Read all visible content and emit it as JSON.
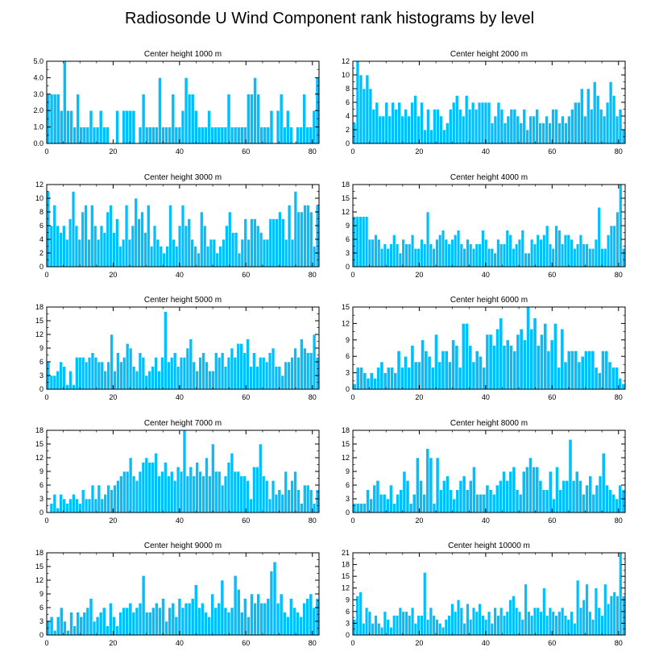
{
  "figure_title": "Radiosonde U Wind Component rank histograms by level",
  "colors": {
    "bar": "#00bfff",
    "axis": "#000000",
    "background": "#ffffff"
  },
  "chart_data": [
    {
      "type": "bar",
      "title": "Center height 1000 m",
      "xlim": [
        0,
        82
      ],
      "ylim": [
        0,
        5
      ],
      "xticks": [
        0,
        20,
        40,
        60,
        80
      ],
      "xtick_labels": [
        "0",
        "20",
        "40",
        "60",
        "80"
      ],
      "yticks": [
        0,
        1,
        2,
        3,
        4,
        5
      ],
      "ytick_labels": [
        "0.0",
        "1.0",
        "2.0",
        "3.0",
        "4.0",
        "5.0"
      ],
      "values": [
        3,
        3,
        3,
        3,
        2,
        5,
        2,
        2,
        1,
        3,
        1,
        1,
        1,
        2,
        1,
        1,
        2,
        1,
        1,
        0,
        0,
        2,
        0,
        2,
        2,
        2,
        2,
        0,
        1,
        3,
        1,
        1,
        1,
        1,
        4,
        1,
        1,
        1,
        3,
        1,
        1,
        2,
        4,
        3,
        3,
        2,
        1,
        1,
        1,
        2,
        1,
        1,
        1,
        1,
        1,
        3,
        1,
        1,
        1,
        1,
        1,
        3,
        3,
        4,
        3,
        1,
        1,
        1,
        2,
        0,
        2,
        3,
        1,
        2,
        1,
        0,
        1,
        1,
        3,
        1,
        1,
        2,
        4
      ]
    },
    {
      "type": "bar",
      "title": "Center height 2000 m",
      "xlim": [
        0,
        82
      ],
      "ylim": [
        0,
        12
      ],
      "xticks": [
        0,
        20,
        40,
        60,
        80
      ],
      "xtick_labels": [
        "0",
        "20",
        "40",
        "60",
        "80"
      ],
      "yticks": [
        0,
        2,
        4,
        6,
        8,
        10,
        12
      ],
      "ytick_labels": [
        "0",
        "2",
        "4",
        "6",
        "8",
        "10",
        "12"
      ],
      "values": [
        3,
        12,
        10,
        8,
        10,
        8,
        5,
        6,
        4,
        4,
        6,
        4,
        6,
        5,
        6,
        4,
        5,
        4,
        6,
        7,
        4,
        6,
        2,
        5,
        2,
        5,
        5,
        4,
        2,
        3,
        5,
        6,
        7,
        5,
        4,
        7,
        5,
        6,
        5,
        6,
        6,
        6,
        6,
        3,
        4,
        6,
        5,
        3,
        4,
        5,
        5,
        4,
        3,
        5,
        2,
        4,
        4,
        5,
        3,
        3,
        4,
        3,
        5,
        5,
        3,
        4,
        3,
        4,
        5,
        6,
        6,
        8,
        4,
        8,
        5,
        9,
        7,
        5,
        4,
        6,
        9,
        7,
        4,
        5,
        2
      ]
    },
    {
      "type": "bar",
      "title": "Center height 3000 m",
      "xlim": [
        0,
        82
      ],
      "ylim": [
        0,
        12
      ],
      "xticks": [
        0,
        20,
        40,
        60,
        80
      ],
      "xtick_labels": [
        "0",
        "20",
        "40",
        "60",
        "80"
      ],
      "yticks": [
        0,
        2,
        4,
        6,
        8,
        10,
        12
      ],
      "ytick_labels": [
        "0",
        "2",
        "4",
        "6",
        "8",
        "10",
        "12"
      ],
      "values": [
        11,
        6,
        9,
        6,
        5,
        6,
        4,
        7,
        11,
        6,
        4,
        8,
        9,
        4,
        9,
        6,
        4,
        6,
        5,
        8,
        9,
        5,
        7,
        3,
        4,
        9,
        4,
        6,
        10,
        7,
        8,
        5,
        9,
        3,
        6,
        4,
        3,
        2,
        3,
        9,
        4,
        3,
        6,
        9,
        6,
        7,
        4,
        3,
        2,
        8,
        6,
        3,
        4,
        4,
        2,
        3,
        4,
        6,
        8,
        5,
        5,
        2,
        4,
        7,
        4,
        7,
        7,
        6,
        5,
        4,
        4,
        7,
        7,
        7,
        8,
        7,
        4,
        9,
        4,
        11,
        8,
        8,
        9,
        9,
        8,
        3,
        9
      ]
    },
    {
      "type": "bar",
      "title": "Center height 4000 m",
      "xlim": [
        0,
        82
      ],
      "ylim": [
        0,
        18
      ],
      "xticks": [
        0,
        20,
        40,
        60,
        80
      ],
      "xtick_labels": [
        "0",
        "20",
        "40",
        "60",
        "80"
      ],
      "yticks": [
        0,
        3,
        6,
        9,
        12,
        15,
        18
      ],
      "ytick_labels": [
        "0",
        "3",
        "6",
        "9",
        "12",
        "15",
        "18"
      ],
      "values": [
        11,
        11,
        11,
        11,
        11,
        6,
        6,
        7,
        6,
        4,
        5,
        4,
        5,
        7,
        5,
        3,
        6,
        5,
        5,
        7,
        4,
        4,
        6,
        5,
        12,
        5,
        4,
        6,
        7,
        8,
        6,
        5,
        6,
        7,
        8,
        5,
        4,
        6,
        5,
        4,
        5,
        5,
        8,
        6,
        4,
        4,
        3,
        6,
        5,
        5,
        8,
        7,
        4,
        5,
        6,
        8,
        3,
        3,
        6,
        5,
        7,
        6,
        7,
        9,
        5,
        4,
        9,
        8,
        5,
        7,
        7,
        6,
        4,
        5,
        7,
        5,
        5,
        4,
        4,
        6,
        13,
        4,
        4,
        7,
        9,
        9,
        12,
        18,
        4
      ]
    },
    {
      "type": "bar",
      "title": "Center height 5000 m",
      "xlim": [
        0,
        82
      ],
      "ylim": [
        0,
        18
      ],
      "xticks": [
        0,
        20,
        40,
        60,
        80
      ],
      "xtick_labels": [
        "0",
        "20",
        "40",
        "60",
        "80"
      ],
      "yticks": [
        0,
        3,
        6,
        9,
        12,
        15,
        18
      ],
      "ytick_labels": [
        "0",
        "3",
        "6",
        "9",
        "12",
        "15",
        "18"
      ],
      "values": [
        6,
        3,
        3,
        4,
        6,
        5,
        1,
        4,
        1,
        7,
        7,
        7,
        6,
        7,
        8,
        7,
        6,
        6,
        4,
        6,
        12,
        4,
        8,
        6,
        7,
        10,
        9,
        5,
        4,
        8,
        7,
        3,
        4,
        5,
        7,
        4,
        7,
        17,
        6,
        7,
        8,
        5,
        7,
        7,
        9,
        11,
        6,
        4,
        7,
        8,
        6,
        4,
        4,
        8,
        7,
        8,
        5,
        7,
        9,
        7,
        10,
        10,
        8,
        11,
        5,
        8,
        5,
        7,
        7,
        6,
        8,
        9,
        5,
        5,
        3,
        6,
        6,
        7,
        9,
        7,
        11,
        9,
        8,
        8,
        12,
        7
      ]
    },
    {
      "type": "bar",
      "title": "Center height 6000 m",
      "xlim": [
        0,
        82
      ],
      "ylim": [
        0,
        15
      ],
      "xticks": [
        0,
        20,
        40,
        60,
        80
      ],
      "xtick_labels": [
        "0",
        "20",
        "40",
        "60",
        "80"
      ],
      "yticks": [
        0,
        3,
        6,
        9,
        12,
        15
      ],
      "ytick_labels": [
        "0",
        "3",
        "6",
        "9",
        "12",
        "15"
      ],
      "values": [
        1,
        4,
        4,
        3,
        2,
        3,
        2,
        4,
        5,
        3,
        4,
        4,
        3,
        7,
        4,
        6,
        4,
        8,
        5,
        5,
        9,
        7,
        6,
        4,
        10,
        5,
        7,
        7,
        5,
        9,
        8,
        4,
        12,
        12,
        8,
        5,
        7,
        6,
        4,
        10,
        10,
        8,
        11,
        13,
        8,
        9,
        8,
        7,
        10,
        11,
        9,
        15,
        11,
        13,
        8,
        10,
        12,
        7,
        9,
        12,
        4,
        11,
        5,
        7,
        7,
        7,
        5,
        6,
        7,
        7,
        7,
        4,
        3,
        7,
        7,
        5,
        4,
        4,
        2,
        1
      ]
    },
    {
      "type": "bar",
      "title": "Center height 7000 m",
      "xlim": [
        0,
        82
      ],
      "ylim": [
        0,
        18
      ],
      "xticks": [
        0,
        20,
        40,
        60,
        80
      ],
      "xtick_labels": [
        "0",
        "20",
        "40",
        "60",
        "80"
      ],
      "yticks": [
        0,
        3,
        6,
        9,
        12,
        15,
        18
      ],
      "ytick_labels": [
        "0",
        "3",
        "6",
        "9",
        "12",
        "15",
        "18"
      ],
      "values": [
        0,
        2,
        4,
        1,
        4,
        3,
        2,
        3,
        4,
        3,
        2,
        5,
        3,
        3,
        6,
        3,
        6,
        3,
        4,
        6,
        5,
        6,
        7,
        8,
        9,
        9,
        12,
        8,
        7,
        9,
        11,
        12,
        11,
        11,
        13,
        8,
        9,
        11,
        8,
        9,
        7,
        10,
        9,
        18,
        8,
        10,
        8,
        11,
        9,
        8,
        12,
        8,
        15,
        9,
        9,
        6,
        8,
        11,
        13,
        9,
        9,
        8,
        8,
        7,
        3,
        10,
        10,
        15,
        8,
        7,
        3,
        7,
        4,
        5,
        4,
        9,
        5,
        7,
        9,
        5,
        2,
        6,
        6,
        5,
        2,
        5
      ]
    },
    {
      "type": "bar",
      "title": "Center height 8000 m",
      "xlim": [
        0,
        82
      ],
      "ylim": [
        0,
        18
      ],
      "xticks": [
        0,
        20,
        40,
        60,
        80
      ],
      "xtick_labels": [
        "0",
        "20",
        "40",
        "60",
        "80"
      ],
      "yticks": [
        0,
        3,
        6,
        9,
        12,
        15,
        18
      ],
      "ytick_labels": [
        "0",
        "3",
        "6",
        "9",
        "12",
        "15",
        "18"
      ],
      "values": [
        2,
        2,
        2,
        2,
        5,
        3,
        6,
        7,
        4,
        4,
        3,
        6,
        2,
        4,
        5,
        9,
        7,
        2,
        4,
        12,
        7,
        4,
        14,
        12,
        2,
        12,
        5,
        7,
        8,
        5,
        3,
        5,
        7,
        8,
        5,
        7,
        10,
        4,
        4,
        4,
        6,
        5,
        4,
        6,
        7,
        9,
        7,
        9,
        10,
        5,
        4,
        9,
        10,
        12,
        10,
        10,
        7,
        5,
        5,
        9,
        3,
        10,
        5,
        7,
        7,
        16,
        7,
        9,
        7,
        4,
        6,
        8,
        4,
        6,
        8,
        13,
        6,
        5,
        4,
        3,
        6,
        5
      ]
    },
    {
      "type": "bar",
      "title": "Center height 9000 m",
      "xlim": [
        0,
        82
      ],
      "ylim": [
        0,
        18
      ],
      "xticks": [
        0,
        20,
        40,
        60,
        80
      ],
      "xtick_labels": [
        "0",
        "20",
        "40",
        "60",
        "80"
      ],
      "yticks": [
        0,
        3,
        6,
        9,
        12,
        15,
        18
      ],
      "ytick_labels": [
        "0",
        "3",
        "6",
        "9",
        "12",
        "15",
        "18"
      ],
      "values": [
        3,
        4,
        1,
        4,
        6,
        3,
        1,
        5,
        2,
        5,
        4,
        5,
        6,
        8,
        3,
        4,
        5,
        6,
        2,
        7,
        4,
        2,
        5,
        6,
        6,
        7,
        5,
        6,
        7,
        13,
        5,
        5,
        6,
        7,
        6,
        8,
        3,
        6,
        7,
        4,
        8,
        6,
        7,
        7,
        8,
        11,
        6,
        7,
        5,
        4,
        9,
        6,
        7,
        12,
        6,
        5,
        6,
        13,
        10,
        5,
        8,
        4,
        9,
        7,
        9,
        7,
        7,
        8,
        14,
        16,
        7,
        9,
        5,
        4,
        8,
        6,
        5,
        4,
        7,
        8,
        9,
        6,
        8
      ]
    },
    {
      "type": "bar",
      "title": "Center height 10000 m",
      "xlim": [
        0,
        82
      ],
      "ylim": [
        0,
        21
      ],
      "xticks": [
        0,
        20,
        40,
        60,
        80
      ],
      "xtick_labels": [
        "0",
        "20",
        "40",
        "60",
        "80"
      ],
      "yticks": [
        0,
        3,
        6,
        9,
        12,
        15,
        18,
        21
      ],
      "ytick_labels": [
        "0",
        "3",
        "6",
        "9",
        "12",
        "15",
        "18",
        "21"
      ],
      "values": [
        4,
        10,
        11,
        3,
        7,
        6,
        3,
        5,
        3,
        2,
        6,
        4,
        2,
        5,
        5,
        7,
        6,
        6,
        5,
        7,
        3,
        5,
        5,
        16,
        4,
        7,
        5,
        4,
        3,
        2,
        4,
        5,
        8,
        6,
        9,
        7,
        3,
        8,
        4,
        7,
        6,
        8,
        5,
        4,
        6,
        3,
        7,
        5,
        7,
        5,
        6,
        9,
        10,
        7,
        6,
        4,
        13,
        6,
        5,
        7,
        7,
        6,
        12,
        5,
        7,
        6,
        5,
        6,
        7,
        5,
        4,
        6,
        3,
        14,
        7,
        9,
        13,
        6,
        4,
        12,
        7,
        5,
        13,
        8,
        10,
        11,
        10,
        21,
        10
      ]
    }
  ]
}
